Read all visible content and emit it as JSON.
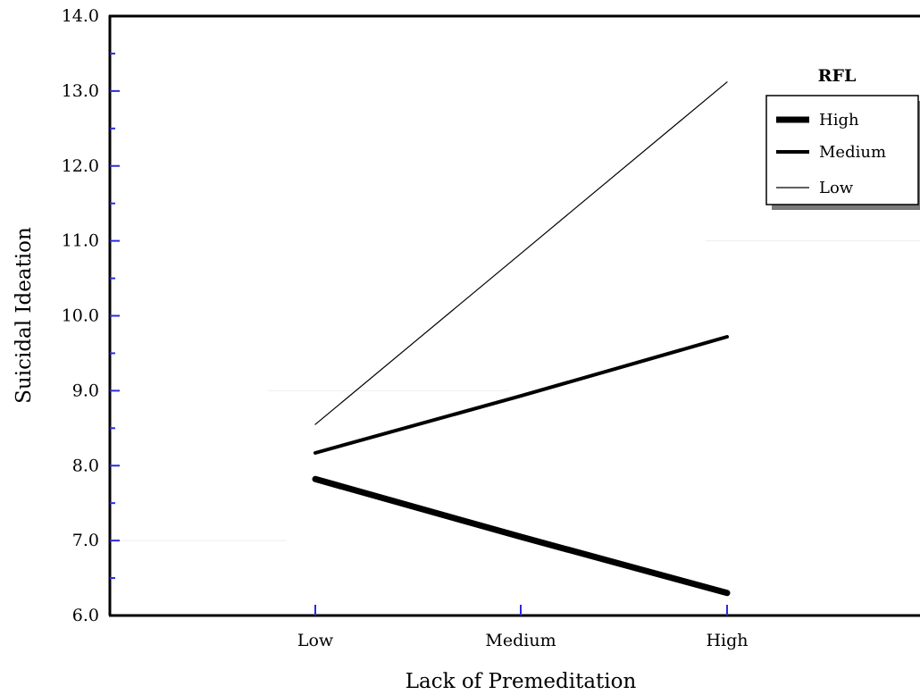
{
  "chart_data": {
    "type": "line",
    "title": "",
    "xlabel": "Lack of Premeditation",
    "ylabel": "Suicidal Ideation",
    "categories": [
      "Low",
      "Medium",
      "High"
    ],
    "ylim": [
      6.0,
      14.0
    ],
    "yticks": [
      "6.0",
      "7.0",
      "8.0",
      "9.0",
      "10.0",
      "11.0",
      "12.0",
      "13.0",
      "14.0"
    ],
    "legend_title": "RFL",
    "legend_position": "top-right",
    "grid": false,
    "series": [
      {
        "name": "High",
        "values": [
          7.82,
          7.05,
          6.3
        ],
        "weight": "thick"
      },
      {
        "name": "Medium",
        "values": [
          8.17,
          8.93,
          9.72
        ],
        "weight": "medium"
      },
      {
        "name": "Low",
        "values": [
          8.55,
          10.83,
          13.12
        ],
        "weight": "thin"
      }
    ]
  }
}
